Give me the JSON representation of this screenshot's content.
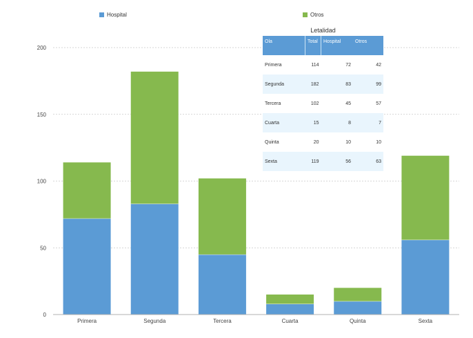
{
  "chart_data": {
    "type": "bar",
    "stacked": true,
    "categories": [
      "Primera",
      "Segunda",
      "Tercera",
      "Cuarta",
      "Quinta",
      "Sexta"
    ],
    "series": [
      {
        "name": "Hospital",
        "values": [
          72,
          83,
          45,
          8,
          10,
          56
        ]
      },
      {
        "name": "Otros",
        "values": [
          42,
          99,
          57,
          7,
          10,
          63
        ]
      }
    ],
    "ylim": [
      0,
      200
    ],
    "yticks": [
      0,
      50,
      100,
      150,
      200
    ],
    "grid": true,
    "legend_position": "top",
    "xlabel": "",
    "ylabel": "",
    "title": ""
  },
  "legend": {
    "hospital_label": "Hospital",
    "otros_label": "Otros"
  },
  "colors": {
    "hospital": "#5b9bd5",
    "otros": "#86b94e",
    "table_header": "#5b9bd5",
    "table_stripe": "#e9f5fd"
  },
  "table": {
    "title": "Letalidad",
    "headers": [
      "Ola",
      "Total",
      "Hospital",
      "Otros"
    ],
    "rows": [
      [
        "Primera",
        "114",
        "72",
        "42"
      ],
      [
        "Segunda",
        "182",
        "83",
        "99"
      ],
      [
        "Tercera",
        "102",
        "45",
        "57"
      ],
      [
        "Cuarta",
        "15",
        "8",
        "7"
      ],
      [
        "Quinta",
        "20",
        "10",
        "10"
      ],
      [
        "Sexta",
        "119",
        "56",
        "63"
      ]
    ]
  }
}
